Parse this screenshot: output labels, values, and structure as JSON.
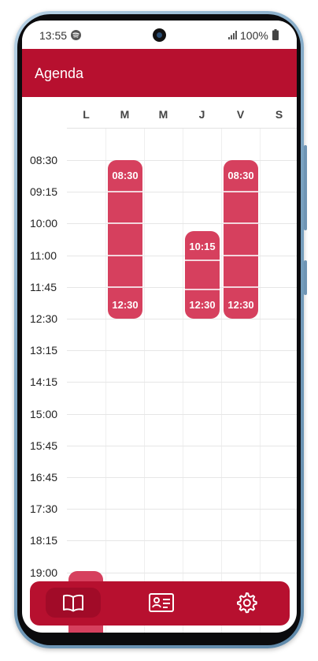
{
  "status_bar": {
    "time": "13:55",
    "battery": "100%"
  },
  "app_bar": {
    "title": "Agenda"
  },
  "days": [
    "L",
    "M",
    "M",
    "J",
    "V",
    "S"
  ],
  "times": [
    "08:30",
    "09:15",
    "10:00",
    "11:00",
    "11:45",
    "12:30",
    "13:15",
    "14:15",
    "15:00",
    "15:45",
    "16:45",
    "17:30",
    "18:15",
    "19:00"
  ],
  "events": [
    {
      "day": "M",
      "start": "08:30",
      "end": "12:30"
    },
    {
      "day": "J",
      "start": "10:15",
      "end": "12:30"
    },
    {
      "day": "V",
      "start": "08:30",
      "end": "12:30"
    }
  ],
  "colors": {
    "primary": "#b7102f",
    "event": "#d6405e"
  },
  "bottom_nav": [
    {
      "icon": "book-icon",
      "active": true
    },
    {
      "icon": "id-card-icon",
      "active": false
    },
    {
      "icon": "gear-icon",
      "active": false
    }
  ]
}
